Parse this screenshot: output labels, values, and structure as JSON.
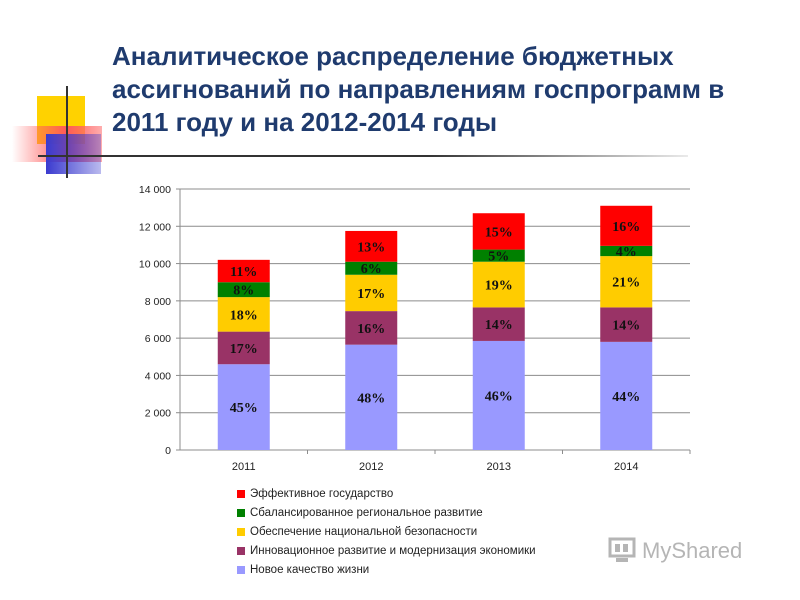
{
  "slide": {
    "title_lines": [
      "Аналитическое распределение бюджетных",
      "ассигнований по направлениям госпрограмм в",
      "2011 году и на 2012-2014 годы"
    ]
  },
  "colors": {
    "title": "#1f3b6e",
    "deco_yellow": "#ffd200",
    "deco_red": "#ff4b4b",
    "deco_blue": "#3a3acf"
  },
  "watermark": {
    "text": "MyShared",
    "icon": "myshared-logo-icon"
  },
  "chart_data": {
    "type": "bar",
    "stacked": true,
    "title": "",
    "xlabel": "",
    "ylabel": "",
    "ylim": [
      0,
      14000
    ],
    "ytick_labels": [
      "0",
      "2 000",
      "4 000",
      "6 000",
      "8 000",
      "10 000",
      "12 000",
      "14 000"
    ],
    "categories": [
      "2011",
      "2012",
      "2013",
      "2014"
    ],
    "grid": true,
    "legend_position": "bottom",
    "series": [
      {
        "name": "Новое качество жизни",
        "color": "#9999ff",
        "values": [
          4600,
          5650,
          5850,
          5800
        ],
        "labels": [
          "45%",
          "48%",
          "46%",
          "44%"
        ]
      },
      {
        "name": "Инновационное развитие и модернизация экономики",
        "color": "#993366",
        "values": [
          1750,
          1800,
          1800,
          1850
        ],
        "labels": [
          "17%",
          "16%",
          "14%",
          "14%"
        ]
      },
      {
        "name": "Обеспечение национальной безопасности",
        "color": "#ffcc00",
        "values": [
          1850,
          1950,
          2450,
          2750
        ],
        "labels": [
          "18%",
          "17%",
          "19%",
          "21%"
        ]
      },
      {
        "name": "Сбалансированное региональное развитие",
        "color": "#008000",
        "values": [
          800,
          700,
          650,
          550
        ],
        "labels": [
          "8%",
          "6%",
          "5%",
          "4%"
        ]
      },
      {
        "name": "Эффективное государство",
        "color": "#ff0000",
        "values": [
          1200,
          1650,
          1950,
          2150
        ],
        "labels": [
          "11%",
          "13%",
          "15%",
          "16%"
        ]
      }
    ],
    "legend_order": [
      4,
      3,
      2,
      1,
      0
    ]
  }
}
